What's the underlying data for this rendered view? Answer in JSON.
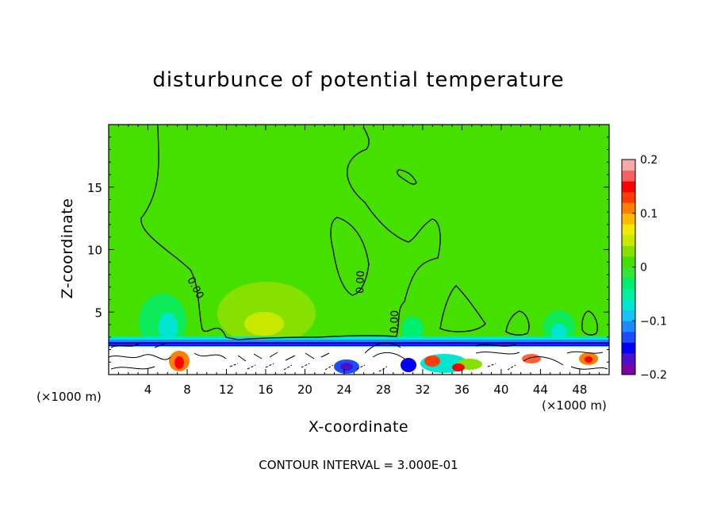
{
  "chart_data": {
    "type": "heatmap",
    "title": "disturbunce of potential temperature",
    "xlabel": "X-coordinate",
    "ylabel": "Z-coordinate",
    "x_unit": "(×1000 m)",
    "y_unit": "(×1000 m)",
    "x_ticks": [
      "4",
      "8",
      "12",
      "16",
      "20",
      "24",
      "28",
      "32",
      "36",
      "40",
      "44",
      "48"
    ],
    "y_ticks": [
      "5",
      "10",
      "15"
    ],
    "x_tick_values": [
      4,
      8,
      12,
      16,
      20,
      24,
      28,
      32,
      36,
      40,
      44,
      48
    ],
    "y_tick_values": [
      5,
      10,
      15
    ],
    "xlim": [
      0,
      51
    ],
    "ylim": [
      0,
      20
    ],
    "colorbar": {
      "range": [
        -0.2,
        0.2
      ],
      "tick_labels": [
        "0.2",
        "0.1",
        "0",
        "−0.1",
        "−0.2"
      ],
      "tick_values": [
        0.2,
        0.1,
        0,
        -0.1,
        -0.2
      ],
      "colors": [
        "#8000a8",
        "#4b0fd0",
        "#0000f5",
        "#1c4cff",
        "#1f8aff",
        "#17c2f7",
        "#00e6d0",
        "#00f0a0",
        "#00ee70",
        "#33e633",
        "#46e000",
        "#86e000",
        "#c8e800",
        "#f2ea00",
        "#ffba00",
        "#ff8000",
        "#ff3c00",
        "#ff0000",
        "#f86060",
        "#f5a8a8"
      ]
    },
    "contour_labels": [
      "0.00",
      "0.00",
      "0.00"
    ],
    "contour_interval_text": "CONTOUR INTERVAL = 3.000E-01",
    "contour_interval": 0.3
  }
}
